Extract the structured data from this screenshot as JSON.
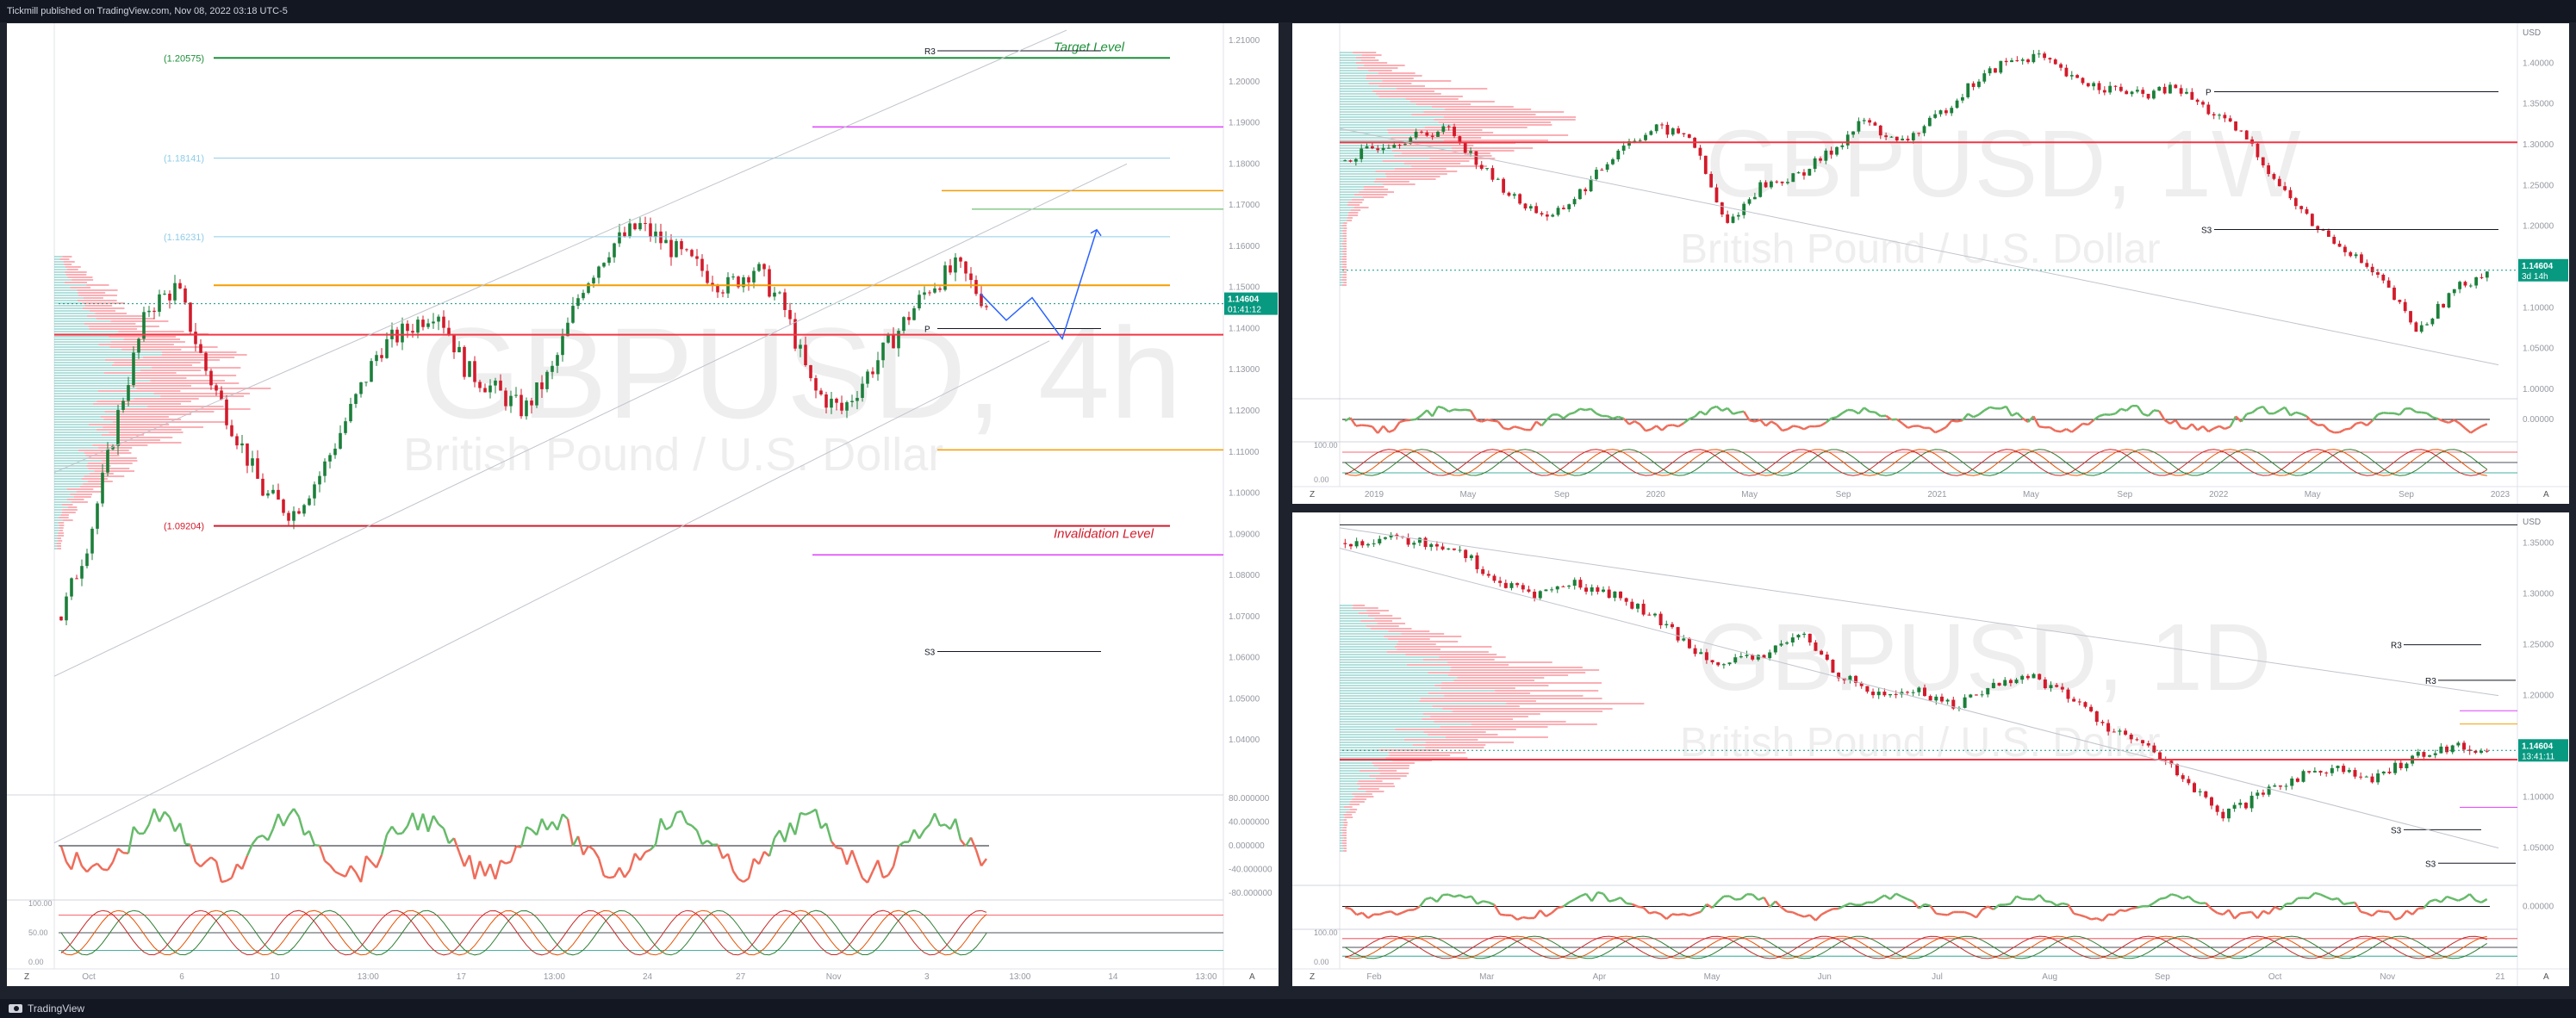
{
  "header": {
    "publisher": "Tickmill published on TradingView.com, Nov 08, 2022 03:18 UTC-5"
  },
  "footer": {
    "brand": "TradingView"
  },
  "colors": {
    "up": "#089981",
    "up_candle": "#26a69a",
    "down": "#f23645",
    "wick_up": "#1b7f3a",
    "wick_down": "#d21b2b",
    "target": "#1e8f3a",
    "invalidation": "#d21b2b",
    "orange": "#f59d00",
    "magenta": "#e040fb",
    "lightblue": "#8fcce8",
    "blue": "#2962ff"
  },
  "chart_data": [
    {
      "type": "line",
      "title": "GBPUSD, 4h",
      "subtitle": "British Pound / U.S. Dollar",
      "currency": "",
      "ylim": [
        1.03,
        1.21
      ],
      "y_ticks": [
        "1.21000",
        "1.20000",
        "1.19000",
        "1.18000",
        "1.17000",
        "1.16000",
        "1.15000",
        "1.14000",
        "1.13000",
        "1.12000",
        "1.11000",
        "1.10000",
        "1.09000",
        "1.08000",
        "1.07000",
        "1.06000",
        "1.05000",
        "1.04000"
      ],
      "x_ticks": [
        "Oct",
        "6",
        "10",
        "13:00",
        "17",
        "13:00",
        "24",
        "27",
        "Nov",
        "3",
        "13:00",
        "14",
        "13:00"
      ],
      "last_price": "1.14604",
      "countdown": "01:41:12",
      "levels": [
        {
          "name": "Target Level",
          "price_label": "(1.20575)",
          "value": 1.20575
        },
        {
          "name": "",
          "price_label": "(1.18141)",
          "value": 1.18141
        },
        {
          "name": "",
          "price_label": "(1.16231)",
          "value": 1.16231
        },
        {
          "name": "Invalidation Level",
          "price_label": "(1.09204)",
          "value": 1.09204
        }
      ],
      "pivot_labels": [
        "R3",
        "P",
        "S3"
      ],
      "osc1_ticks": [
        "80.000000",
        "40.000000",
        "0.000000",
        "-40.000000",
        "-80.000000"
      ],
      "osc2_ticks": [
        "100.00",
        "50.00",
        "0.00"
      ],
      "series": [
        {
          "values": [
            1.07,
            1.09,
            1.12,
            1.145,
            1.15,
            1.13,
            1.115,
            1.1,
            1.095,
            1.105,
            1.12,
            1.135,
            1.14,
            1.145,
            1.13,
            1.125,
            1.12,
            1.13,
            1.15,
            1.16,
            1.165,
            1.16,
            1.155,
            1.15,
            1.155,
            1.145,
            1.125,
            1.12,
            1.13,
            1.14,
            1.15,
            1.155,
            1.146
          ]
        }
      ]
    },
    {
      "type": "line",
      "title": "GBPUSD, 1W",
      "subtitle": "British Pound / U.S. Dollar",
      "currency": "USD",
      "ylim": [
        1.0,
        1.43
      ],
      "y_ticks": [
        "1.40000",
        "1.35000",
        "1.30000",
        "1.25000",
        "1.20000",
        "1.15000",
        "1.10000",
        "1.05000",
        "1.00000"
      ],
      "x_ticks": [
        "2019",
        "May",
        "Sep",
        "2020",
        "May",
        "Sep",
        "2021",
        "May",
        "Sep",
        "2022",
        "May",
        "Sep",
        "2023"
      ],
      "last_price": "1.14604",
      "countdown": "3d 14h",
      "pivot_labels": [
        "P",
        "S3"
      ],
      "osc1_ticks": [
        "0.00000"
      ],
      "osc2_ticks": [
        "100.00",
        "0.00"
      ],
      "series": [
        {
          "values": [
            1.28,
            1.3,
            1.31,
            1.32,
            1.27,
            1.23,
            1.21,
            1.25,
            1.3,
            1.32,
            1.31,
            1.2,
            1.25,
            1.26,
            1.29,
            1.33,
            1.3,
            1.33,
            1.37,
            1.4,
            1.41,
            1.38,
            1.37,
            1.36,
            1.37,
            1.34,
            1.31,
            1.25,
            1.2,
            1.17,
            1.13,
            1.07,
            1.12,
            1.146
          ]
        }
      ]
    },
    {
      "type": "line",
      "title": "GBPUSD, 1D",
      "subtitle": "British Pound / U.S. Dollar",
      "currency": "USD",
      "ylim": [
        1.02,
        1.37
      ],
      "y_ticks": [
        "1.35000",
        "1.30000",
        "1.25000",
        "1.20000",
        "1.15000",
        "1.10000",
        "1.05000"
      ],
      "x_ticks": [
        "Feb",
        "Mar",
        "Apr",
        "May",
        "Jun",
        "Jul",
        "Aug",
        "Sep",
        "Oct",
        "Nov",
        "21"
      ],
      "last_price": "1.14604",
      "countdown": "13:41:11",
      "pivot_labels": [
        "R3",
        "R3",
        "S3",
        "S3"
      ],
      "osc1_ticks": [
        "0.00000"
      ],
      "osc2_ticks": [
        "100.00",
        "0.00"
      ],
      "series": [
        {
          "values": [
            1.35,
            1.355,
            1.35,
            1.345,
            1.31,
            1.3,
            1.31,
            1.3,
            1.28,
            1.25,
            1.23,
            1.24,
            1.26,
            1.22,
            1.2,
            1.205,
            1.19,
            1.21,
            1.22,
            1.2,
            1.17,
            1.15,
            1.12,
            1.08,
            1.1,
            1.12,
            1.13,
            1.115,
            1.14,
            1.15,
            1.146
          ]
        }
      ]
    }
  ]
}
